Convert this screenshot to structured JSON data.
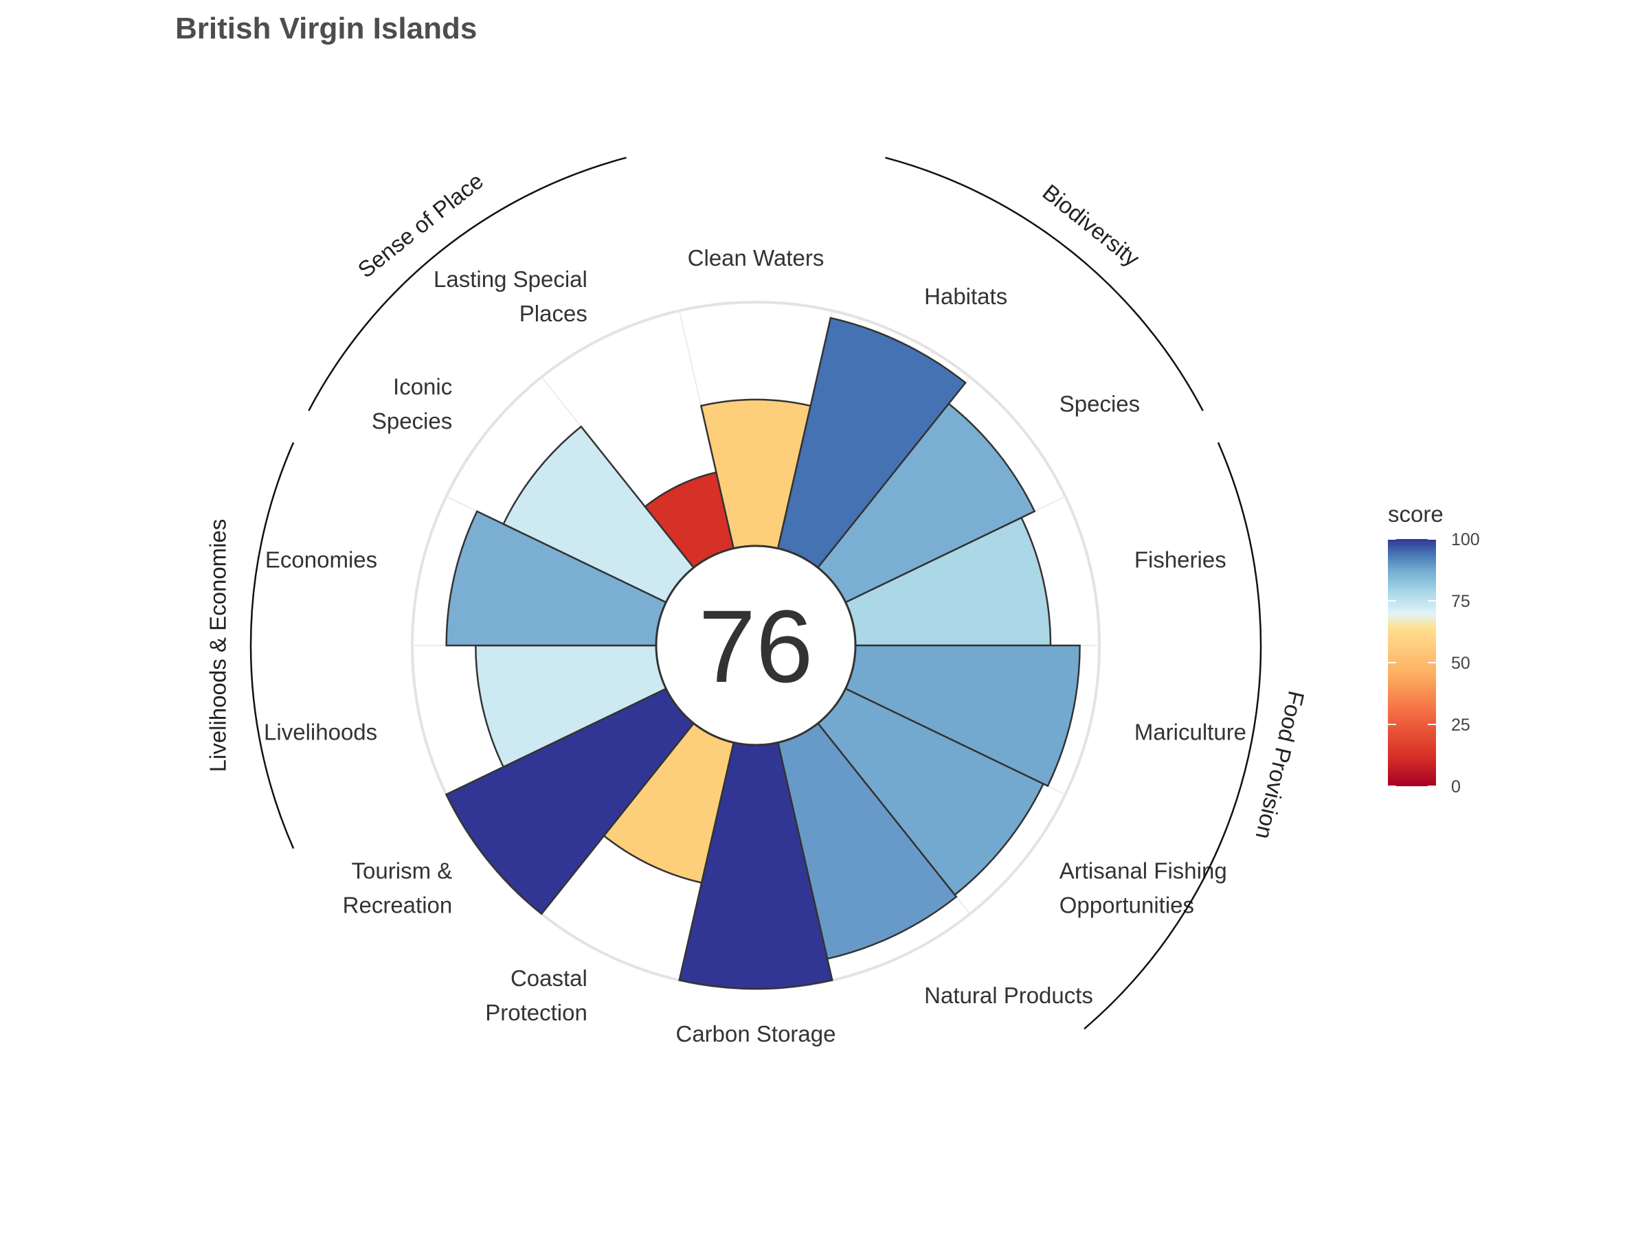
{
  "chart_data": {
    "type": "polar-bar",
    "title": "British Virgin Islands",
    "center_score": "76",
    "score_max": 100,
    "legend": {
      "title": "score",
      "ticks": [
        0,
        25,
        50,
        75,
        100
      ],
      "placement": "right",
      "colors": [
        "#a50026",
        "#d73027",
        "#f46d43",
        "#fdae61",
        "#fee090",
        "#e0f3f8",
        "#abd9e9",
        "#74add1",
        "#4575b4",
        "#313695"
      ]
    },
    "goals": [
      {
        "id": "fisheries",
        "label": [
          "Fisheries"
        ],
        "score": 80,
        "color": "#abd7e6"
      },
      {
        "id": "mariculture",
        "label": [
          "Mariculture"
        ],
        "score": 92,
        "color": "#74a9cf"
      },
      {
        "id": "artisanal-fishing",
        "label": [
          "Artisanal Fishing",
          "Opportunities"
        ],
        "score": 90,
        "color": "#74a9cf"
      },
      {
        "id": "natural-products",
        "label": [
          "Natural Products"
        ],
        "score": 91,
        "color": "#679ac8"
      },
      {
        "id": "carbon-storage",
        "label": [
          "Carbon Storage"
        ],
        "score": 100,
        "color": "#313695"
      },
      {
        "id": "coastal-protection",
        "label": [
          "Coastal",
          "Protection"
        ],
        "score": 59,
        "color": "#fdcf7b"
      },
      {
        "id": "tourism-recreation",
        "label": [
          "Tourism &",
          "Recreation"
        ],
        "score": 100,
        "color": "#313695"
      },
      {
        "id": "livelihoods",
        "label": [
          "Livelihoods"
        ],
        "score": 74,
        "color": "#cde9f2"
      },
      {
        "id": "economies",
        "label": [
          "Economies"
        ],
        "score": 86,
        "color": "#7aafd3"
      },
      {
        "id": "iconic-species",
        "label": [
          "Iconic",
          "Species"
        ],
        "score": 74,
        "color": "#cde9f2"
      },
      {
        "id": "lasting-special-places",
        "label": [
          "Lasting Special",
          "Places"
        ],
        "score": 32,
        "color": "#d73027"
      },
      {
        "id": "clean-waters",
        "label": [
          "Clean Waters"
        ],
        "score": 60,
        "color": "#fdcf7b"
      },
      {
        "id": "habitats",
        "label": [
          "Habitats"
        ],
        "score": 97,
        "color": "#4472b2"
      },
      {
        "id": "species",
        "label": [
          "Species"
        ],
        "score": 86,
        "color": "#7aafd3"
      }
    ],
    "groups": [
      {
        "id": "food-provision",
        "label": "Food Provision",
        "from": 0,
        "to": 2
      },
      {
        "id": "biodiversity",
        "label": "Biodiversity",
        "from": 12,
        "to": 13
      },
      {
        "id": "sense-of-place",
        "label": "Sense of Place",
        "from": 9,
        "to": 10
      },
      {
        "id": "livelihoods-economies",
        "label": "Livelihoods & Economies",
        "from": 7,
        "to": 8
      }
    ]
  }
}
